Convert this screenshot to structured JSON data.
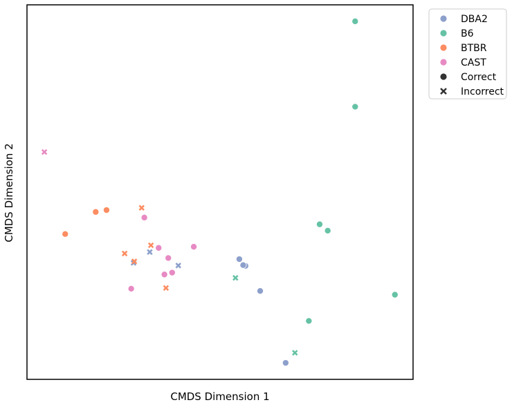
{
  "chart_data": {
    "type": "scatter",
    "title": "",
    "xlabel": "CMDS Dimension 1",
    "ylabel": "CMDS Dimension 2",
    "xlim": [
      0,
      100
    ],
    "ylim": [
      0,
      100
    ],
    "grid": false,
    "ticks_shown": false,
    "legend_position": "outside-top-right",
    "hue_legend": [
      {
        "name": "DBA2",
        "color": "#8da0cb"
      },
      {
        "name": "B6",
        "color": "#66c2a5"
      },
      {
        "name": "BTBR",
        "color": "#fc8d62"
      },
      {
        "name": "CAST",
        "color": "#e78ac3"
      }
    ],
    "style_legend": [
      {
        "name": "Correct",
        "marker": "circle",
        "color": "#333333"
      },
      {
        "name": "Incorrect",
        "marker": "x",
        "color": "#333333"
      }
    ],
    "series": [
      {
        "group": "DBA2",
        "points": [
          {
            "x": 55.0,
            "y": 32.1,
            "style": "Correct"
          },
          {
            "x": 56.6,
            "y": 30.3,
            "style": "Correct"
          },
          {
            "x": 56.0,
            "y": 30.5,
            "style": "Correct"
          },
          {
            "x": 60.4,
            "y": 23.6,
            "style": "Correct"
          },
          {
            "x": 67.0,
            "y": 4.4,
            "style": "Correct"
          },
          {
            "x": 39.2,
            "y": 30.4,
            "style": "Incorrect"
          },
          {
            "x": 31.8,
            "y": 34.0,
            "style": "Incorrect"
          },
          {
            "x": 27.6,
            "y": 31.1,
            "style": "Incorrect"
          }
        ]
      },
      {
        "group": "B6",
        "points": [
          {
            "x": 85.0,
            "y": 95.6,
            "style": "Correct"
          },
          {
            "x": 85.0,
            "y": 72.8,
            "style": "Correct"
          },
          {
            "x": 75.8,
            "y": 41.4,
            "style": "Correct"
          },
          {
            "x": 77.9,
            "y": 39.7,
            "style": "Correct"
          },
          {
            "x": 95.3,
            "y": 22.6,
            "style": "Correct"
          },
          {
            "x": 73.0,
            "y": 15.6,
            "style": "Correct"
          },
          {
            "x": 54.0,
            "y": 27.1,
            "style": "Incorrect"
          },
          {
            "x": 69.4,
            "y": 7.1,
            "style": "Incorrect"
          }
        ]
      },
      {
        "group": "BTBR",
        "points": [
          {
            "x": 17.8,
            "y": 44.7,
            "style": "Correct"
          },
          {
            "x": 20.6,
            "y": 45.2,
            "style": "Correct"
          },
          {
            "x": 9.9,
            "y": 38.8,
            "style": "Correct"
          },
          {
            "x": 29.7,
            "y": 45.8,
            "style": "Incorrect"
          },
          {
            "x": 32.1,
            "y": 35.8,
            "style": "Incorrect"
          },
          {
            "x": 25.3,
            "y": 33.6,
            "style": "Incorrect"
          },
          {
            "x": 27.8,
            "y": 31.5,
            "style": "Incorrect"
          },
          {
            "x": 36.0,
            "y": 24.4,
            "style": "Incorrect"
          }
        ]
      },
      {
        "group": "CAST",
        "points": [
          {
            "x": 30.4,
            "y": 43.2,
            "style": "Correct"
          },
          {
            "x": 34.1,
            "y": 35.1,
            "style": "Correct"
          },
          {
            "x": 43.2,
            "y": 35.4,
            "style": "Correct"
          },
          {
            "x": 36.6,
            "y": 32.4,
            "style": "Correct"
          },
          {
            "x": 37.6,
            "y": 28.5,
            "style": "Correct"
          },
          {
            "x": 35.6,
            "y": 28.0,
            "style": "Correct"
          },
          {
            "x": 27.0,
            "y": 24.2,
            "style": "Correct"
          },
          {
            "x": 4.5,
            "y": 60.7,
            "style": "Incorrect"
          }
        ]
      }
    ]
  }
}
